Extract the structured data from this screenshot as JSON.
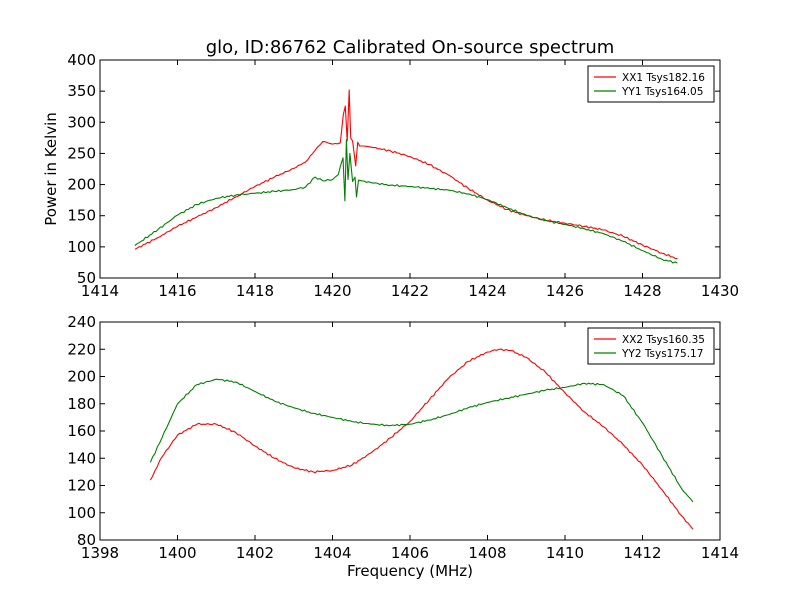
{
  "figure": {
    "title": "glo, ID:86762 Calibrated On-source spectrum"
  },
  "chart_data": [
    {
      "type": "line",
      "title": "glo, ID:86762 Calibrated On-source spectrum",
      "xlabel": "",
      "ylabel": "Power in Kelvin",
      "xlim": [
        1414,
        1430
      ],
      "ylim": [
        50,
        400
      ],
      "xticks": [
        1414,
        1416,
        1418,
        1420,
        1422,
        1424,
        1426,
        1428,
        1430
      ],
      "yticks": [
        50,
        100,
        150,
        200,
        250,
        300,
        350,
        400
      ],
      "grid": false,
      "legend_position": "top-right",
      "series": [
        {
          "name": "XX1 Tsys182.16",
          "color": "#ff0000",
          "x": [
            1414.9,
            1415.5,
            1416.0,
            1416.5,
            1417.0,
            1417.5,
            1418.0,
            1418.5,
            1419.0,
            1419.3,
            1419.55,
            1419.75,
            1420.0,
            1420.2,
            1420.28,
            1420.33,
            1420.38,
            1420.43,
            1420.47,
            1420.52,
            1420.6,
            1420.65,
            1420.7,
            1420.8,
            1421.0,
            1421.5,
            1422.0,
            1422.5,
            1423.0,
            1423.5,
            1424.0,
            1424.5,
            1425.0,
            1425.5,
            1426.0,
            1426.5,
            1427.0,
            1427.5,
            1428.0,
            1428.5,
            1428.9
          ],
          "y": [
            96,
            115,
            133,
            148,
            163,
            180,
            197,
            212,
            226,
            236,
            255,
            269,
            265,
            267,
            312,
            326,
            270,
            352,
            275,
            270,
            230,
            268,
            262,
            262,
            260,
            254,
            245,
            232,
            215,
            194,
            175,
            160,
            150,
            143,
            138,
            133,
            127,
            117,
            103,
            90,
            81
          ]
        },
        {
          "name": "YY1 Tsys164.05",
          "color": "#008000",
          "x": [
            1414.9,
            1415.5,
            1416.0,
            1416.5,
            1417.0,
            1417.5,
            1418.0,
            1418.5,
            1419.0,
            1419.3,
            1419.55,
            1419.75,
            1420.0,
            1420.15,
            1420.27,
            1420.32,
            1420.36,
            1420.4,
            1420.45,
            1420.52,
            1420.58,
            1420.62,
            1420.67,
            1420.75,
            1421.0,
            1421.5,
            1422.0,
            1422.5,
            1423.0,
            1423.5,
            1424.0,
            1424.5,
            1425.0,
            1425.5,
            1426.0,
            1426.5,
            1427.0,
            1427.5,
            1428.0,
            1428.5,
            1428.9
          ],
          "y": [
            102,
            128,
            151,
            168,
            178,
            183,
            186,
            189,
            192,
            196,
            212,
            206,
            208,
            216,
            243,
            174,
            272,
            208,
            250,
            205,
            212,
            180,
            207,
            206,
            203,
            199,
            197,
            194,
            191,
            185,
            176,
            163,
            151,
            142,
            136,
            129,
            121,
            109,
            94,
            80,
            74
          ]
        }
      ]
    },
    {
      "type": "line",
      "title": "",
      "xlabel": "Frequency (MHz)",
      "ylabel": "",
      "xlim": [
        1398,
        1414
      ],
      "ylim": [
        80,
        240
      ],
      "xticks": [
        1398,
        1400,
        1402,
        1404,
        1406,
        1408,
        1410,
        1412,
        1414
      ],
      "yticks": [
        80,
        100,
        120,
        140,
        160,
        180,
        200,
        220,
        240
      ],
      "grid": false,
      "legend_position": "top-right",
      "series": [
        {
          "name": "XX2 Tsys160.35",
          "color": "#ff0000",
          "x": [
            1399.3,
            1399.6,
            1400.0,
            1400.5,
            1401.0,
            1401.5,
            1402.0,
            1402.5,
            1403.0,
            1403.5,
            1404.0,
            1404.5,
            1405.0,
            1405.5,
            1406.0,
            1406.5,
            1407.0,
            1407.5,
            1408.0,
            1408.3,
            1408.6,
            1409.0,
            1409.5,
            1410.0,
            1410.5,
            1411.0,
            1411.5,
            1412.0,
            1412.5,
            1413.0,
            1413.3
          ],
          "y": [
            124,
            141,
            157,
            165,
            165,
            159,
            149,
            140,
            133,
            130,
            131,
            135,
            144,
            155,
            167,
            183,
            199,
            211,
            218,
            220,
            219,
            214,
            203,
            188,
            174,
            163,
            150,
            135,
            117,
            98,
            88
          ]
        },
        {
          "name": "YY2 Tsys175.17",
          "color": "#008000",
          "x": [
            1399.3,
            1399.6,
            1400.0,
            1400.5,
            1401.0,
            1401.5,
            1402.0,
            1402.5,
            1403.0,
            1403.5,
            1404.0,
            1404.5,
            1405.0,
            1405.5,
            1406.0,
            1406.5,
            1407.0,
            1407.5,
            1408.0,
            1408.5,
            1409.0,
            1409.5,
            1410.0,
            1410.5,
            1411.0,
            1411.5,
            1412.0,
            1412.5,
            1413.0,
            1413.3
          ],
          "y": [
            137,
            155,
            180,
            194,
            198,
            196,
            189,
            182,
            177,
            173,
            170,
            167,
            165,
            164,
            165,
            168,
            172,
            177,
            181,
            184,
            187,
            190,
            192,
            195,
            194,
            186,
            166,
            142,
            118,
            108
          ]
        }
      ]
    }
  ]
}
